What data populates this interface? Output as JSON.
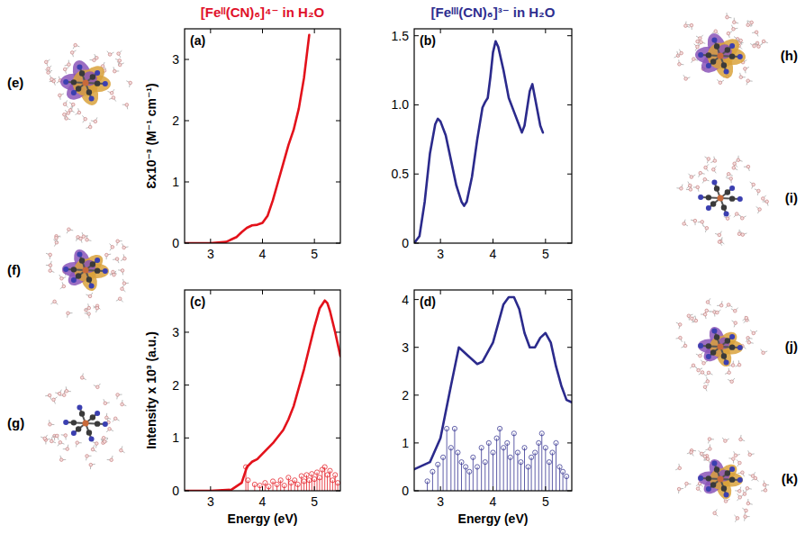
{
  "chart_data": [
    {
      "type": "line",
      "title": "[Feᴵᴵ(CN)₆]⁴⁻ in H₂O",
      "annotations": [
        "(a)"
      ],
      "y_label": "Ɛx10⁻³ (M⁻¹ cm⁻¹)",
      "xlim": [
        2.5,
        5.5
      ],
      "xticks": [
        3,
        4,
        5
      ],
      "ylim": [
        0,
        3.5
      ],
      "yticks": [
        0,
        1,
        2,
        3
      ],
      "series": [
        {
          "type": "line",
          "color": "#e3121b",
          "x": [
            2.5,
            3.0,
            3.3,
            3.5,
            3.6,
            3.7,
            3.8,
            3.9,
            4.0,
            4.1,
            4.2,
            4.3,
            4.4,
            4.5,
            4.6,
            4.7,
            4.8,
            4.9
          ],
          "values": [
            0,
            0,
            0.02,
            0.1,
            0.18,
            0.25,
            0.29,
            0.3,
            0.33,
            0.45,
            0.7,
            1.0,
            1.3,
            1.6,
            1.85,
            2.2,
            2.7,
            3.4
          ]
        }
      ]
    },
    {
      "type": "line",
      "title": "[Feᴵᴵᴵ(CN)₆]³⁻ in H₂O",
      "annotations": [
        "(b)"
      ],
      "xlim": [
        2.5,
        5.5
      ],
      "xticks": [
        3,
        4,
        5
      ],
      "ylim": [
        0,
        1.55
      ],
      "yticks": [
        0,
        {
          "value": 0.5,
          "label": "0.5"
        },
        {
          "value": 1,
          "label": "1.0"
        },
        {
          "value": 1.5,
          "label": "1.5"
        }
      ],
      "series": [
        {
          "type": "line",
          "color": "#2b2a8c",
          "x": [
            2.5,
            2.6,
            2.7,
            2.8,
            2.9,
            2.95,
            3.0,
            3.1,
            3.2,
            3.3,
            3.4,
            3.45,
            3.5,
            3.6,
            3.7,
            3.8,
            3.85,
            3.9,
            3.95,
            4.0,
            4.05,
            4.1,
            4.2,
            4.3,
            4.4,
            4.5,
            4.55,
            4.6,
            4.7,
            4.75,
            4.8,
            4.9,
            4.95
          ],
          "values": [
            0,
            0.05,
            0.3,
            0.65,
            0.86,
            0.9,
            0.88,
            0.78,
            0.6,
            0.42,
            0.3,
            0.27,
            0.3,
            0.48,
            0.75,
            0.98,
            1.02,
            1.05,
            1.2,
            1.38,
            1.46,
            1.42,
            1.25,
            1.05,
            0.95,
            0.85,
            0.8,
            0.85,
            1.1,
            1.15,
            1.05,
            0.85,
            0.8
          ]
        }
      ]
    },
    {
      "type": "line",
      "annotations": [
        "(c)"
      ],
      "y_label": "Intensity x 10³ (a.u.)",
      "x_label": "Energy (eV)",
      "xlim": [
        2.5,
        5.5
      ],
      "xticks": [
        3,
        4,
        5
      ],
      "ylim": [
        0,
        3.8
      ],
      "yticks": [
        0,
        1,
        2,
        3
      ],
      "series": [
        {
          "type": "stick",
          "marker": "circle",
          "color": "#e3121b",
          "x": [
            3.68,
            3.72,
            3.85,
            3.95,
            4.05,
            4.12,
            4.2,
            4.28,
            4.35,
            4.42,
            4.5,
            4.55,
            4.62,
            4.68,
            4.75,
            4.8,
            4.85,
            4.9,
            4.95,
            5.0,
            5.05,
            5.1,
            5.15,
            5.2,
            5.25,
            5.3,
            5.35,
            5.4,
            5.45
          ],
          "values": [
            0.45,
            0.2,
            0.12,
            0.1,
            0.15,
            0.08,
            0.18,
            0.12,
            0.2,
            0.1,
            0.25,
            0.15,
            0.2,
            0.12,
            0.28,
            0.18,
            0.3,
            0.2,
            0.32,
            0.22,
            0.35,
            0.25,
            0.4,
            0.45,
            0.3,
            0.38,
            0.2,
            0.3,
            0.15
          ]
        },
        {
          "type": "line",
          "color": "#e3121b",
          "x": [
            2.5,
            3.0,
            3.4,
            3.6,
            3.7,
            3.8,
            3.9,
            4.0,
            4.2,
            4.4,
            4.5,
            4.6,
            4.7,
            4.8,
            4.9,
            5.0,
            5.1,
            5.2,
            5.25,
            5.3,
            5.4,
            5.5
          ],
          "values": [
            0,
            0,
            0.02,
            0.15,
            0.45,
            0.55,
            0.6,
            0.7,
            0.9,
            1.15,
            1.35,
            1.6,
            1.95,
            2.3,
            2.7,
            3.1,
            3.45,
            3.6,
            3.55,
            3.4,
            3.0,
            2.55
          ]
        }
      ]
    },
    {
      "type": "line",
      "annotations": [
        "(d)"
      ],
      "x_label": "Energy (eV)",
      "xlim": [
        2.5,
        5.5
      ],
      "xticks": [
        3,
        4,
        5
      ],
      "ylim": [
        0,
        4.2
      ],
      "yticks": [
        0,
        1,
        2,
        3,
        4
      ],
      "series": [
        {
          "type": "stick",
          "marker": "circle",
          "color": "#2b2a8c",
          "x": [
            2.75,
            2.85,
            2.95,
            3.05,
            3.12,
            3.2,
            3.27,
            3.33,
            3.4,
            3.48,
            3.55,
            3.62,
            3.7,
            3.78,
            3.85,
            3.92,
            4.0,
            4.07,
            4.13,
            4.2,
            4.27,
            4.33,
            4.4,
            4.47,
            4.53,
            4.6,
            4.67,
            4.73,
            4.8,
            4.87,
            4.93,
            5.0,
            5.07,
            5.13,
            5.2,
            5.27,
            5.33,
            5.4
          ],
          "values": [
            0.2,
            0.4,
            0.55,
            0.7,
            1.3,
            0.9,
            1.3,
            0.8,
            0.6,
            0.5,
            0.4,
            0.7,
            0.5,
            0.9,
            0.6,
            1.0,
            0.8,
            1.1,
            1.3,
            0.9,
            1.0,
            0.7,
            1.2,
            0.8,
            0.6,
            0.9,
            0.5,
            0.7,
            0.8,
            1.0,
            1.2,
            0.9,
            0.6,
            0.8,
            1.0,
            0.5,
            0.4,
            0.3
          ]
        },
        {
          "type": "line",
          "color": "#2b2a8c",
          "x": [
            2.5,
            2.8,
            3.0,
            3.2,
            3.35,
            3.5,
            3.7,
            3.8,
            4.0,
            4.1,
            4.2,
            4.3,
            4.4,
            4.5,
            4.6,
            4.7,
            4.8,
            4.9,
            5.0,
            5.1,
            5.2,
            5.3,
            5.4,
            5.5
          ],
          "values": [
            0.45,
            0.6,
            1.1,
            2.2,
            3.0,
            2.85,
            2.65,
            2.7,
            3.1,
            3.5,
            3.9,
            4.05,
            4.05,
            3.8,
            3.3,
            3.0,
            3.0,
            3.2,
            3.3,
            3.1,
            2.6,
            2.2,
            1.9,
            1.85
          ]
        }
      ]
    }
  ],
  "side_labels": {
    "left": [
      "(e)",
      "(f)",
      "(g)"
    ],
    "right": [
      "(h)",
      "(i)",
      "(j)",
      "(k)"
    ]
  }
}
